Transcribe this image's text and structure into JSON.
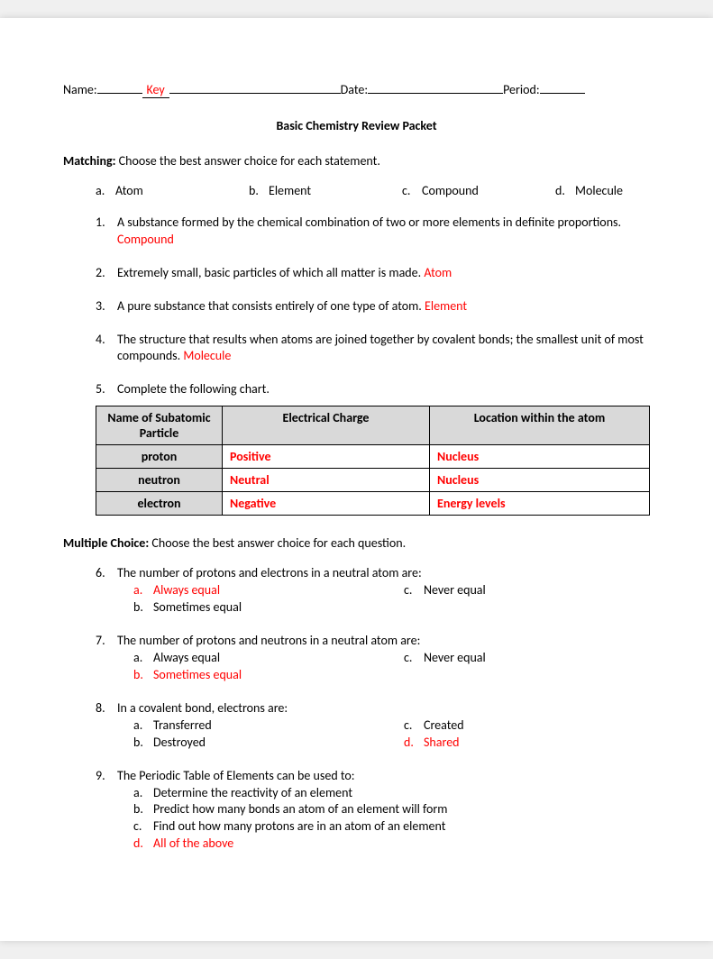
{
  "colors": {
    "answer_red": "#ff0000",
    "table_header_bg": "#d9d9d9",
    "page_bg": "#ffffff",
    "text": "#000000"
  },
  "header": {
    "name_label": "Name:",
    "name_value": "Key",
    "date_label": "Date:",
    "period_label": "Period:"
  },
  "title": "Basic Chemistry Review Packet",
  "matching": {
    "heading_bold": "Matching:",
    "heading_rest": " Choose the best answer choice for each statement.",
    "choices": [
      {
        "letter": "a.",
        "text": "Atom"
      },
      {
        "letter": "b.",
        "text": "Element"
      },
      {
        "letter": "c.",
        "text": "Compound"
      },
      {
        "letter": "d.",
        "text": "Molecule"
      }
    ],
    "items": [
      {
        "num": "1.",
        "text": "A substance formed by the chemical combination of two or more elements in definite proportions. ",
        "answer": "Compound"
      },
      {
        "num": "2.",
        "text": "Extremely small, basic particles of which all matter is made. ",
        "answer": "Atom"
      },
      {
        "num": "3.",
        "text": "A pure substance that consists entirely of one type of atom. ",
        "answer": "Element"
      },
      {
        "num": "4.",
        "text": "The structure that results when atoms are joined together by covalent bonds; the smallest unit of most compounds. ",
        "answer": "Molecule"
      },
      {
        "num": "5.",
        "text": "Complete the following chart.",
        "answer": ""
      }
    ]
  },
  "table": {
    "columns": [
      "Name of Subatomic Particle",
      "Electrical Charge",
      "Location within the atom"
    ],
    "col_widths": [
      "140px",
      "auto",
      "auto"
    ],
    "rows": [
      {
        "name": "proton",
        "charge": "Positive",
        "location": "Nucleus"
      },
      {
        "name": "neutron",
        "charge": "Neutral",
        "location": "Nucleus"
      },
      {
        "name": "electron",
        "charge": "Negative",
        "location": "Energy levels"
      }
    ]
  },
  "mc": {
    "heading_bold": "Multiple Choice:",
    "heading_rest": " Choose the best answer choice for each question.",
    "questions": [
      {
        "num": "6.",
        "stem": "The number of protons and electrons in a neutral atom are:",
        "left": [
          {
            "lbl": "a.",
            "txt": "Always equal",
            "correct": true
          },
          {
            "lbl": "b.",
            "txt": "Sometimes equal",
            "correct": false
          }
        ],
        "right": [
          {
            "lbl": "c.",
            "txt": "Never equal",
            "correct": false
          }
        ]
      },
      {
        "num": "7.",
        "stem": "The number of protons and neutrons in a neutral atom are:",
        "left": [
          {
            "lbl": "a.",
            "txt": "Always equal",
            "correct": false
          },
          {
            "lbl": "b.",
            "txt": "Sometimes equal",
            "correct": true
          }
        ],
        "right": [
          {
            "lbl": "c.",
            "txt": "Never equal",
            "correct": false
          }
        ]
      },
      {
        "num": "8.",
        "stem": "In a covalent bond, electrons are:",
        "left": [
          {
            "lbl": "a.",
            "txt": "Transferred",
            "correct": false
          },
          {
            "lbl": "b.",
            "txt": "Destroyed",
            "correct": false
          }
        ],
        "right": [
          {
            "lbl": "c.",
            "txt": "Created",
            "correct": false
          },
          {
            "lbl": "d.",
            "txt": "Shared",
            "correct": true
          }
        ]
      },
      {
        "num": "9.",
        "stem": "The Periodic Table of Elements can be used to:",
        "left": [
          {
            "lbl": "a.",
            "txt": "Determine the reactivity of an element",
            "correct": false
          },
          {
            "lbl": "b.",
            "txt": "Predict how many bonds an atom of an element will form",
            "correct": false
          },
          {
            "lbl": "c.",
            "txt": "Find out how many protons are in an atom of an element",
            "correct": false
          },
          {
            "lbl": "d.",
            "txt": "All of the above",
            "correct": true
          }
        ],
        "right": []
      }
    ]
  }
}
